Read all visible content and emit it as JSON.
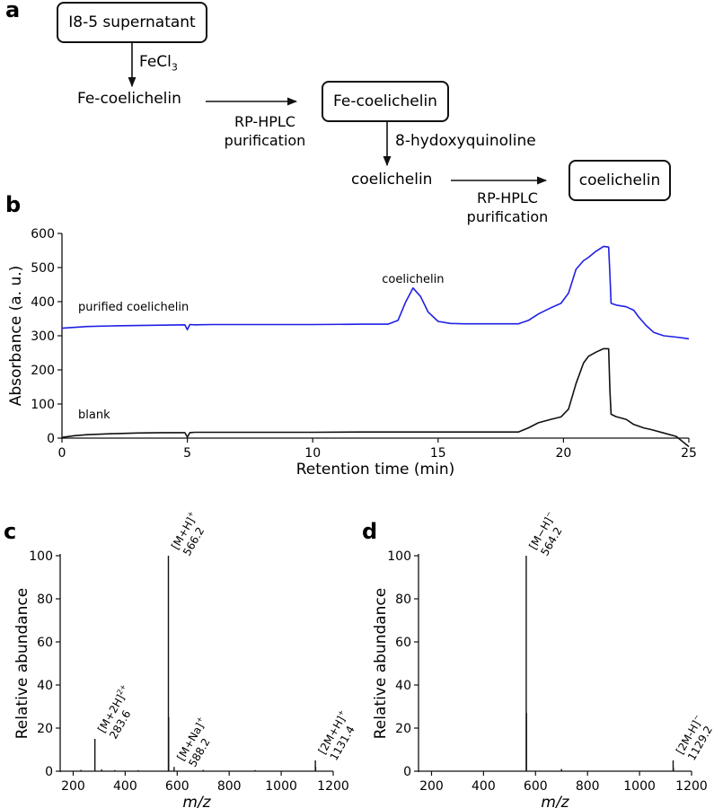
{
  "panels": {
    "a": "a",
    "b": "b",
    "c": "c",
    "d": "d"
  },
  "flow": {
    "box1": "I8-5 supernatant",
    "reagent1_base": "FeCl",
    "reagent1_sub": "3",
    "step1": "Fe-coelichelin",
    "purify1_line1": "RP-HPLC",
    "purify1_line2": "purification",
    "box2": "Fe-coelichelin",
    "reagent2": "8-hydoxyquinoline",
    "step2": "coelichelin",
    "purify2_line1": "RP-HPLC",
    "purify2_line2": "purification",
    "box3": "coelichelin"
  },
  "chart_data": [
    {
      "type": "line",
      "xlabel": "Retention time (min)",
      "ylabel": "Absorbance (a. u.)",
      "xlim": [
        0,
        25
      ],
      "ylim": [
        0,
        600
      ],
      "xticks": [
        0,
        5,
        10,
        15,
        20,
        25
      ],
      "yticks": [
        0,
        100,
        200,
        300,
        400,
        500,
        600
      ],
      "annotations": [
        {
          "text": "coelichelin",
          "x": 14.0,
          "y": 455
        }
      ],
      "series": [
        {
          "name": "purified coelichelin",
          "color": "#1f1fe6",
          "x": [
            0,
            1,
            2,
            3,
            4,
            4.9,
            5.0,
            5.1,
            5.3,
            6,
            8,
            10,
            12,
            13,
            13.4,
            13.7,
            14.0,
            14.3,
            14.6,
            15.0,
            15.5,
            16,
            17,
            18.2,
            18.6,
            19.0,
            19.5,
            19.9,
            20.2,
            20.5,
            20.8,
            21.0,
            21.3,
            21.6,
            21.8,
            21.85,
            21.9,
            22.1,
            22.5,
            22.8,
            23.0,
            23.3,
            23.6,
            24.0,
            24.5,
            25.0
          ],
          "y": [
            322,
            327,
            329,
            330,
            331,
            332,
            318,
            333,
            332,
            333,
            333,
            333,
            334,
            334,
            345,
            398,
            440,
            415,
            370,
            342,
            336,
            335,
            335,
            335,
            345,
            364,
            382,
            395,
            425,
            495,
            520,
            530,
            548,
            562,
            560,
            480,
            395,
            390,
            385,
            375,
            355,
            330,
            310,
            300,
            296,
            291
          ]
        },
        {
          "name": "blank",
          "color": "#111111",
          "x": [
            0,
            0.5,
            1,
            2,
            3,
            4,
            4.9,
            5.0,
            5.1,
            5.3,
            6,
            8,
            10,
            12,
            14,
            16,
            17,
            18.2,
            18.6,
            19.0,
            19.5,
            19.9,
            20.2,
            20.5,
            20.8,
            21.0,
            21.3,
            21.6,
            21.8,
            21.85,
            21.9,
            22.1,
            22.5,
            22.8,
            23.2,
            23.5,
            24.0,
            24.5,
            25.0
          ],
          "y": [
            2,
            7,
            10,
            13,
            15,
            16,
            16,
            3,
            16,
            17,
            17,
            17,
            17,
            18,
            18,
            18,
            18,
            18,
            30,
            45,
            55,
            62,
            85,
            160,
            220,
            240,
            252,
            262,
            262,
            140,
            70,
            63,
            55,
            40,
            30,
            25,
            15,
            5,
            -25
          ]
        }
      ]
    },
    {
      "type": "bar",
      "xlabel": "m/z",
      "ylabel": "Relative abundance",
      "xlim": [
        150,
        1200
      ],
      "ylim": [
        0,
        100
      ],
      "xticks": [
        200,
        400,
        600,
        800,
        1000,
        1200
      ],
      "yticks": [
        0,
        20,
        40,
        60,
        80,
        100
      ],
      "peaks": [
        {
          "x": 283.6,
          "y": 15
        },
        {
          "x": 566.2,
          "y": 100
        },
        {
          "x": 567.2,
          "y": 25
        },
        {
          "x": 588.2,
          "y": 2
        },
        {
          "x": 1131.4,
          "y": 5
        },
        {
          "x": 1132.4,
          "y": 2
        },
        {
          "x": 230,
          "y": 0.6
        },
        {
          "x": 310,
          "y": 0.8
        },
        {
          "x": 360,
          "y": 0.5
        },
        {
          "x": 450,
          "y": 0.5
        },
        {
          "x": 700,
          "y": 0.6
        },
        {
          "x": 900,
          "y": 0.5
        }
      ],
      "labels": [
        {
          "ion": "[M+2H]",
          "charge": "2+",
          "mz": "283.6",
          "x": 283.6,
          "y": 15
        },
        {
          "ion": "[M+H]",
          "charge": "+",
          "mz": "566.2",
          "x": 566.2,
          "y": 100
        },
        {
          "ion": "[M+Na]",
          "charge": "+",
          "mz": "588.2",
          "x": 588.2,
          "y": 2
        },
        {
          "ion": "[2M+H]",
          "charge": "+",
          "mz": "1131.4",
          "x": 1131.4,
          "y": 5
        }
      ]
    },
    {
      "type": "bar",
      "xlabel": "m/z",
      "ylabel": "Relative abundance",
      "xlim": [
        150,
        1200
      ],
      "ylim": [
        0,
        100
      ],
      "xticks": [
        200,
        400,
        600,
        800,
        1000,
        1200
      ],
      "yticks": [
        0,
        20,
        40,
        60,
        80,
        100
      ],
      "peaks": [
        {
          "x": 564.2,
          "y": 100
        },
        {
          "x": 565.2,
          "y": 27
        },
        {
          "x": 700,
          "y": 1
        },
        {
          "x": 1129.2,
          "y": 5
        },
        {
          "x": 1130.2,
          "y": 1.5
        }
      ],
      "labels": [
        {
          "ion": "[M−H]",
          "charge": "−",
          "mz": "564.2",
          "x": 564.2,
          "y": 100
        },
        {
          "ion": "[2M-H]",
          "charge": "−",
          "mz": "1129.2",
          "x": 1129.2,
          "y": 5
        }
      ]
    }
  ]
}
